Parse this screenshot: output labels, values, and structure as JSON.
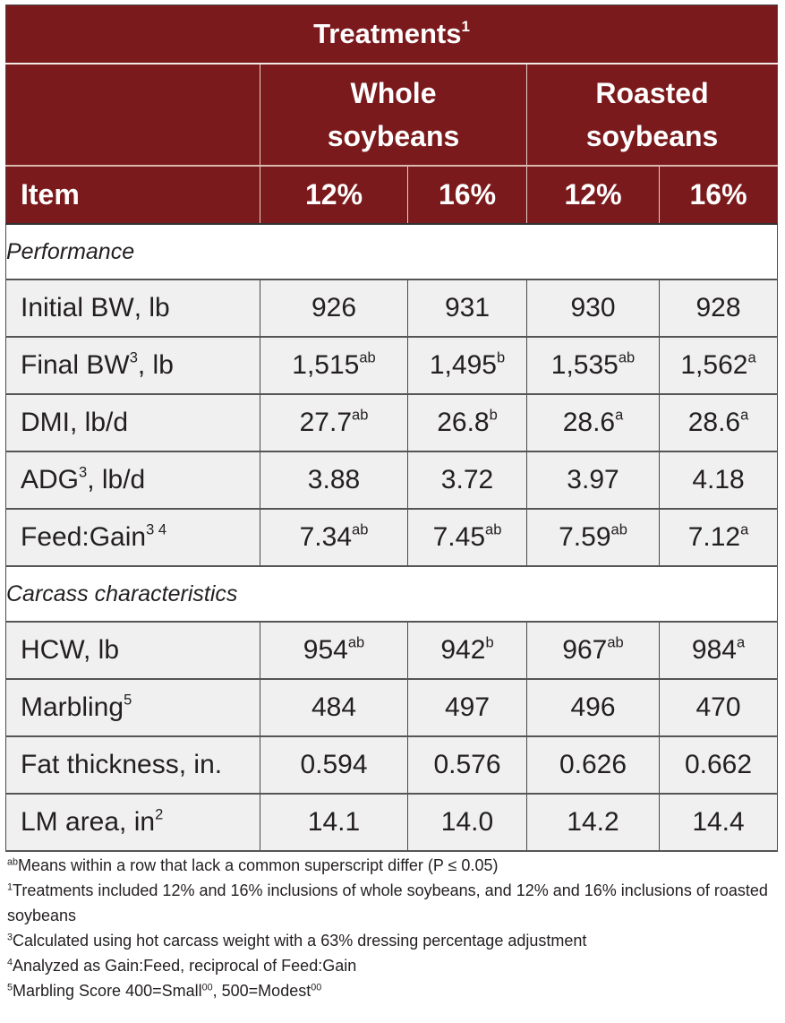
{
  "table": {
    "title": "Treatments",
    "title_sup": "1",
    "groups": [
      {
        "label": "Whole soybeans",
        "line1": "Whole",
        "line2": "soybeans"
      },
      {
        "label": "Roasted soybeans",
        "line1": "Roasted",
        "line2": "soybeans"
      }
    ],
    "item_header": "Item",
    "levels": [
      "12%",
      "16%",
      "12%",
      "16%"
    ],
    "sections": [
      {
        "label": "Performance",
        "rows": [
          {
            "item": "Initial BW",
            "item_sup": "",
            "item_suffix": ", lb",
            "values": [
              {
                "v": "926",
                "s": ""
              },
              {
                "v": "931",
                "s": ""
              },
              {
                "v": "930",
                "s": ""
              },
              {
                "v": "928",
                "s": ""
              }
            ]
          },
          {
            "item": "Final BW",
            "item_sup": "3",
            "item_suffix": ", lb",
            "values": [
              {
                "v": "1,515",
                "s": "ab"
              },
              {
                "v": "1,495",
                "s": "b"
              },
              {
                "v": "1,535",
                "s": "ab"
              },
              {
                "v": "1,562",
                "s": "a"
              }
            ]
          },
          {
            "item": "DMI, lb/d",
            "item_sup": "",
            "item_suffix": "",
            "values": [
              {
                "v": "27.7",
                "s": "ab"
              },
              {
                "v": "26.8",
                "s": "b"
              },
              {
                "v": "28.6",
                "s": "a"
              },
              {
                "v": "28.6",
                "s": "a"
              }
            ]
          },
          {
            "item": "ADG",
            "item_sup": "3",
            "item_suffix": ", lb/d",
            "values": [
              {
                "v": "3.88",
                "s": ""
              },
              {
                "v": "3.72",
                "s": ""
              },
              {
                "v": "3.97",
                "s": ""
              },
              {
                "v": "4.18",
                "s": ""
              }
            ]
          },
          {
            "item": "Feed:Gain",
            "item_sup": "3 4",
            "item_suffix": "",
            "values": [
              {
                "v": "7.34",
                "s": "ab"
              },
              {
                "v": "7.45",
                "s": "ab"
              },
              {
                "v": "7.59",
                "s": "ab"
              },
              {
                "v": "7.12",
                "s": "a"
              }
            ]
          }
        ]
      },
      {
        "label": "Carcass characteristics",
        "rows": [
          {
            "item": "HCW, lb",
            "item_sup": "",
            "item_suffix": "",
            "values": [
              {
                "v": "954",
                "s": "ab"
              },
              {
                "v": "942",
                "s": "b"
              },
              {
                "v": "967",
                "s": "ab"
              },
              {
                "v": "984",
                "s": "a"
              }
            ]
          },
          {
            "item": "Marbling",
            "item_sup": "5",
            "item_suffix": "",
            "values": [
              {
                "v": "484",
                "s": ""
              },
              {
                "v": "497",
                "s": ""
              },
              {
                "v": "496",
                "s": ""
              },
              {
                "v": "470",
                "s": ""
              }
            ]
          },
          {
            "item": "Fat thickness, in.",
            "item_sup": "",
            "item_suffix": "",
            "values": [
              {
                "v": "0.594",
                "s": ""
              },
              {
                "v": "0.576",
                "s": ""
              },
              {
                "v": "0.626",
                "s": ""
              },
              {
                "v": "0.662",
                "s": ""
              }
            ]
          },
          {
            "item": "LM area, in",
            "item_sup": "2",
            "item_suffix": "",
            "values": [
              {
                "v": "14.1",
                "s": ""
              },
              {
                "v": "14.0",
                "s": ""
              },
              {
                "v": "14.2",
                "s": ""
              },
              {
                "v": "14.4",
                "s": ""
              }
            ]
          }
        ]
      }
    ]
  },
  "footnotes": [
    {
      "mark": "ab",
      "text": "Means within a row that lack a common superscript differ (P ≤ 0.05)"
    },
    {
      "mark": "1",
      "text": "Treatments included 12% and 16% inclusions of whole soybeans, and 12% and 16% inclusions of roasted soybeans"
    },
    {
      "mark": "3",
      "text": "Calculated using hot carcass weight with a 63% dressing percentage adjustment"
    },
    {
      "mark": "4",
      "text": "Analyzed as Gain:Feed, reciprocal of Feed:Gain"
    },
    {
      "mark": "5",
      "text": "Marbling Score 400=Small",
      "sup1": "00",
      "text2": ", 500=Modest",
      "sup2": "00"
    }
  ],
  "colors": {
    "header_bg": "#7b1a1c",
    "row_bg": "#f0f0f0",
    "section_bg": "#ffffff"
  }
}
